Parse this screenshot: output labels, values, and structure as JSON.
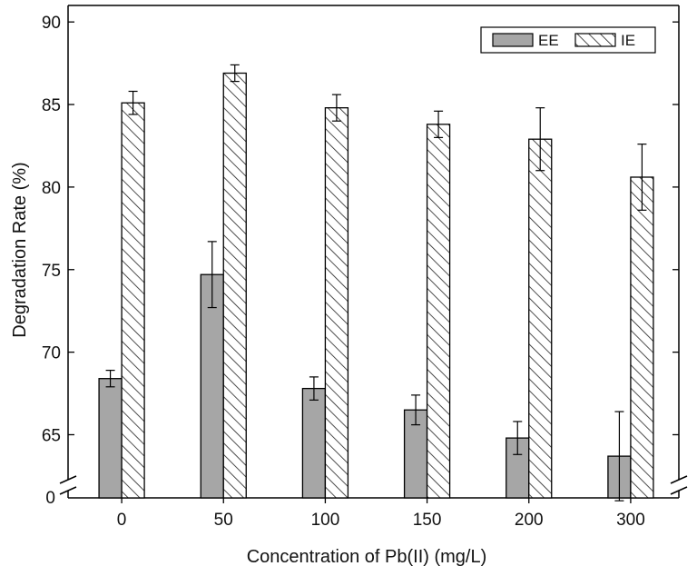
{
  "chart_data": {
    "type": "bar",
    "xlabel": "Concentration of Pb(II) (mg/L)",
    "ylabel": "Degradation Rate (%)",
    "categories": [
      "0",
      "50",
      "100",
      "150",
      "200",
      "300"
    ],
    "series": [
      {
        "name": "EE",
        "style": "solid-gray",
        "color": "#a6a6a6",
        "values": [
          68.4,
          74.7,
          67.8,
          66.5,
          64.8,
          63.7
        ],
        "errors": [
          0.5,
          2.0,
          0.7,
          0.9,
          1.0,
          2.7
        ]
      },
      {
        "name": "IE",
        "style": "hatched",
        "color": "#ffffff",
        "values": [
          85.1,
          86.9,
          84.8,
          83.8,
          82.9,
          80.6
        ],
        "errors": [
          0.7,
          0.5,
          0.8,
          0.8,
          1.9,
          2.0
        ]
      }
    ],
    "ylim_upper": [
      62,
      91
    ],
    "ylim_lower_label": "0",
    "yticks": [
      65,
      70,
      75,
      80,
      85,
      90
    ],
    "axis_break": true,
    "legend_position": "top-right",
    "grid": false
  }
}
